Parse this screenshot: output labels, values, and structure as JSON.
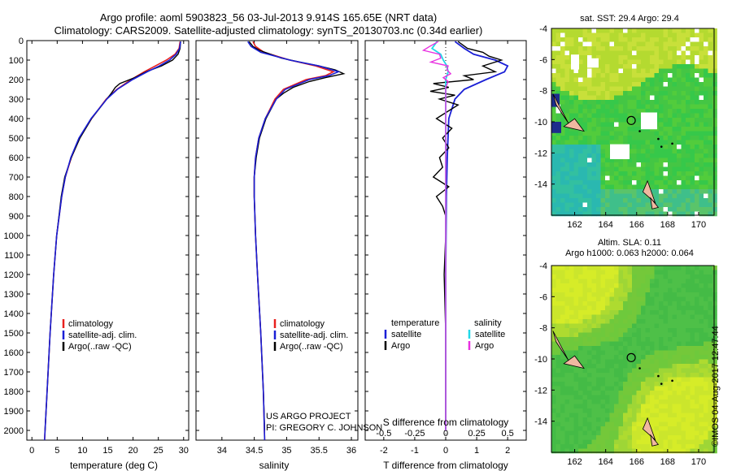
{
  "header": {
    "title_line1": "Argo profile: aoml 5903823_56 03-Jul-2013 9.914S 165.65E (NRT data)",
    "title_line2": "Climatology: CARS2009. Satellite-adjusted climatology: synTS_20130703.nc (0.34d earlier)"
  },
  "credits": {
    "project": "US ARGO PROJECT",
    "pi": "PI: GREGORY C. JOHNSON",
    "stamp": "©IMOS 04-Aug-2017 12:47:44"
  },
  "colors": {
    "climatology": "#e8201e",
    "satellite": "#1a1fd6",
    "argo": "#000000",
    "salinity_satellite": "#22d8e8",
    "salinity_argo": "#e830e0"
  },
  "chart_data": [
    {
      "id": "temperature",
      "type": "line",
      "xlabel": "temperature (deg C)",
      "ylabel": "",
      "xlim": [
        -1,
        31
      ],
      "ylim": [
        2050,
        0
      ],
      "xticks": [
        0,
        5,
        10,
        15,
        20,
        25,
        30
      ],
      "yticks": [
        0,
        100,
        200,
        300,
        400,
        500,
        600,
        700,
        800,
        900,
        1000,
        1100,
        1200,
        1300,
        1400,
        1500,
        1600,
        1700,
        1800,
        1900,
        2000
      ],
      "legend": [
        "climatology",
        "satellite-adj. clim.",
        "Argo(..raw -QC)"
      ],
      "series": [
        {
          "name": "climatology",
          "color": "#e8201e",
          "depth": [
            5,
            40,
            70,
            100,
            130,
            160,
            200,
            250,
            300,
            400,
            500,
            600,
            700,
            800,
            1000,
            1200,
            1500,
            1800,
            2000,
            2050
          ],
          "values": [
            29.3,
            29.1,
            28.3,
            26.6,
            24.4,
            22.2,
            19.6,
            16.8,
            14.7,
            11.8,
            9.4,
            7.8,
            6.6,
            5.9,
            4.9,
            4.3,
            3.6,
            3.0,
            2.6,
            2.5
          ]
        },
        {
          "name": "satellite-adj. clim.",
          "color": "#1a1fd6",
          "depth": [
            5,
            40,
            70,
            100,
            130,
            160,
            200,
            250,
            300,
            400,
            500,
            600,
            700,
            800,
            1000,
            1200,
            1500,
            1800,
            2000,
            2050
          ],
          "values": [
            29.4,
            29.2,
            28.5,
            27.2,
            25.2,
            22.8,
            19.9,
            16.9,
            14.8,
            11.7,
            9.3,
            7.7,
            6.6,
            5.9,
            4.9,
            4.3,
            3.6,
            3.0,
            2.6,
            2.5
          ]
        },
        {
          "name": "Argo(..raw -QC)",
          "color": "#000000",
          "depth": [
            5,
            40,
            70,
            100,
            130,
            160,
            190,
            220,
            240,
            270,
            300,
            400,
            500,
            600,
            700,
            800,
            1000,
            1200,
            1500,
            1800,
            2000
          ],
          "values": [
            29.4,
            29.3,
            28.9,
            27.8,
            25.6,
            22.6,
            20.3,
            17.4,
            16.5,
            15.7,
            14.8,
            11.8,
            9.5,
            7.8,
            6.5,
            5.8,
            4.9,
            4.3,
            3.6,
            3.0,
            2.6
          ]
        }
      ]
    },
    {
      "id": "salinity",
      "type": "line",
      "xlabel": "salinity",
      "ylabel": "",
      "xlim": [
        33.6,
        36.1
      ],
      "ylim": [
        2050,
        0
      ],
      "xticks": [
        34,
        34.5,
        35,
        35.5,
        36
      ],
      "legend": [
        "climatology",
        "satellite-adj. clim.",
        "Argo(..raw -QC)"
      ],
      "series": [
        {
          "name": "climatology",
          "color": "#e8201e",
          "depth": [
            5,
            30,
            60,
            100,
            130,
            160,
            180,
            200,
            250,
            300,
            400,
            500,
            600,
            700,
            800,
            1000,
            1200,
            1500,
            1800,
            2050
          ],
          "values": [
            34.48,
            34.52,
            34.65,
            35.05,
            35.45,
            35.72,
            35.6,
            35.3,
            34.95,
            34.82,
            34.67,
            34.57,
            34.52,
            34.5,
            34.5,
            34.52,
            34.55,
            34.6,
            34.64,
            34.66
          ]
        },
        {
          "name": "satellite-adj. clim.",
          "color": "#1a1fd6",
          "depth": [
            5,
            30,
            60,
            100,
            130,
            160,
            180,
            200,
            250,
            300,
            400,
            500,
            600,
            700,
            800,
            1000,
            1200,
            1500,
            1800,
            2050
          ],
          "values": [
            34.4,
            34.45,
            34.6,
            35.05,
            35.5,
            35.8,
            35.65,
            35.35,
            34.98,
            34.84,
            34.67,
            34.57,
            34.52,
            34.5,
            34.5,
            34.52,
            34.55,
            34.6,
            34.64,
            34.66
          ]
        },
        {
          "name": "Argo(..raw -QC)",
          "color": "#000000",
          "depth": [
            5,
            30,
            50,
            70,
            90,
            110,
            130,
            150,
            170,
            190,
            210,
            240,
            270,
            300,
            400,
            500,
            600,
            700,
            800,
            1000,
            1200,
            1500,
            1800,
            2000
          ],
          "values": [
            34.42,
            34.48,
            34.58,
            34.75,
            34.92,
            35.2,
            35.5,
            35.75,
            35.88,
            35.6,
            35.35,
            35.1,
            34.95,
            34.84,
            34.68,
            34.58,
            34.53,
            34.5,
            34.5,
            34.52,
            34.55,
            34.6,
            34.64,
            34.66
          ]
        }
      ]
    },
    {
      "id": "difference",
      "type": "line",
      "xlabel": "T difference from climatology",
      "x2label": "S difference from climatology",
      "xlim": [
        -2.6,
        2.6
      ],
      "x2lim": [
        -0.65,
        0.65
      ],
      "ylim": [
        2050,
        0
      ],
      "xticks": [
        -2,
        -1,
        0,
        1,
        2
      ],
      "x2ticks": [
        -0.5,
        -0.25,
        0,
        0.25,
        0.5
      ],
      "legend_temperature": "temperature",
      "legend_salinity": "salinity",
      "legend_items": [
        "satellite",
        "Argo",
        "satellite",
        "Argo"
      ],
      "series": [
        {
          "name": "temperature satellite",
          "color": "#1a1fd6",
          "axis": "T",
          "depth": [
            5,
            40,
            70,
            100,
            130,
            160,
            200,
            250,
            300,
            400,
            600,
            800,
            1200,
            2000
          ],
          "values": [
            0.3,
            0.6,
            0.9,
            1.6,
            2.0,
            1.9,
            1.3,
            0.6,
            0.3,
            0.1,
            0.05,
            0.02,
            0.0,
            0.0
          ]
        },
        {
          "name": "temperature Argo",
          "color": "#000000",
          "axis": "T",
          "depth": [
            5,
            40,
            60,
            80,
            100,
            130,
            160,
            180,
            200,
            220,
            240,
            260,
            280,
            300,
            330,
            360,
            400,
            450,
            500,
            550,
            600,
            650,
            700,
            750,
            800,
            850,
            900,
            1000,
            1200,
            1500,
            2000
          ],
          "values": [
            0.4,
            0.7,
            1.2,
            1.4,
            1.8,
            1.2,
            1.6,
            0.6,
            0.9,
            -0.4,
            0.1,
            -0.5,
            0.3,
            -0.2,
            0.4,
            0.1,
            -0.3,
            0.2,
            -0.1,
            0.1,
            -0.2,
            -0.1,
            -0.4,
            0.1,
            -0.3,
            -0.1,
            0.0,
            0.0,
            -0.05,
            0.0,
            0.0
          ]
        },
        {
          "name": "salinity satellite",
          "color": "#22d8e8",
          "axis": "S",
          "depth": [
            5,
            40,
            70,
            100,
            130,
            160,
            200,
            300,
            500,
            800,
            1200,
            1600,
            2000
          ],
          "values": [
            -0.07,
            -0.11,
            -0.04,
            -0.02,
            0.01,
            0.02,
            0.0,
            0.0,
            0.0,
            0.0,
            0.0,
            0.0,
            0.0
          ]
        },
        {
          "name": "salinity Argo",
          "color": "#e830e0",
          "axis": "S",
          "depth": [
            5,
            30,
            50,
            70,
            90,
            110,
            130,
            150,
            170,
            190,
            210,
            240,
            300,
            500,
            1500,
            2000
          ],
          "values": [
            -0.06,
            -0.13,
            -0.18,
            -0.05,
            -0.04,
            -0.12,
            0.02,
            0.01,
            0.04,
            -0.02,
            0.02,
            0.0,
            0.0,
            0.0,
            0.0,
            0.0
          ]
        }
      ]
    },
    {
      "id": "sst_map",
      "type": "heatmap",
      "title": "sat. SST: 29.4  Argo: 29.4",
      "xlim": [
        160.5,
        171
      ],
      "ylim": [
        -16,
        -4
      ],
      "xticks": [
        162,
        164,
        166,
        168,
        170
      ],
      "yticks": [
        -4,
        -6,
        -8,
        -10,
        -12,
        -14
      ],
      "marker": [
        165.65,
        -9.914
      ]
    },
    {
      "id": "sla_map",
      "type": "heatmap",
      "title": "Altim. SLA: 0.11",
      "subtitle": "Argo h1000: 0.063 h2000: 0.064",
      "xlim": [
        160.5,
        171
      ],
      "ylim": [
        -16,
        -4
      ],
      "xticks": [
        162,
        164,
        166,
        168,
        170
      ],
      "yticks": [
        -4,
        -6,
        -8,
        -10,
        -12,
        -14
      ],
      "marker": [
        165.65,
        -9.914
      ]
    }
  ]
}
